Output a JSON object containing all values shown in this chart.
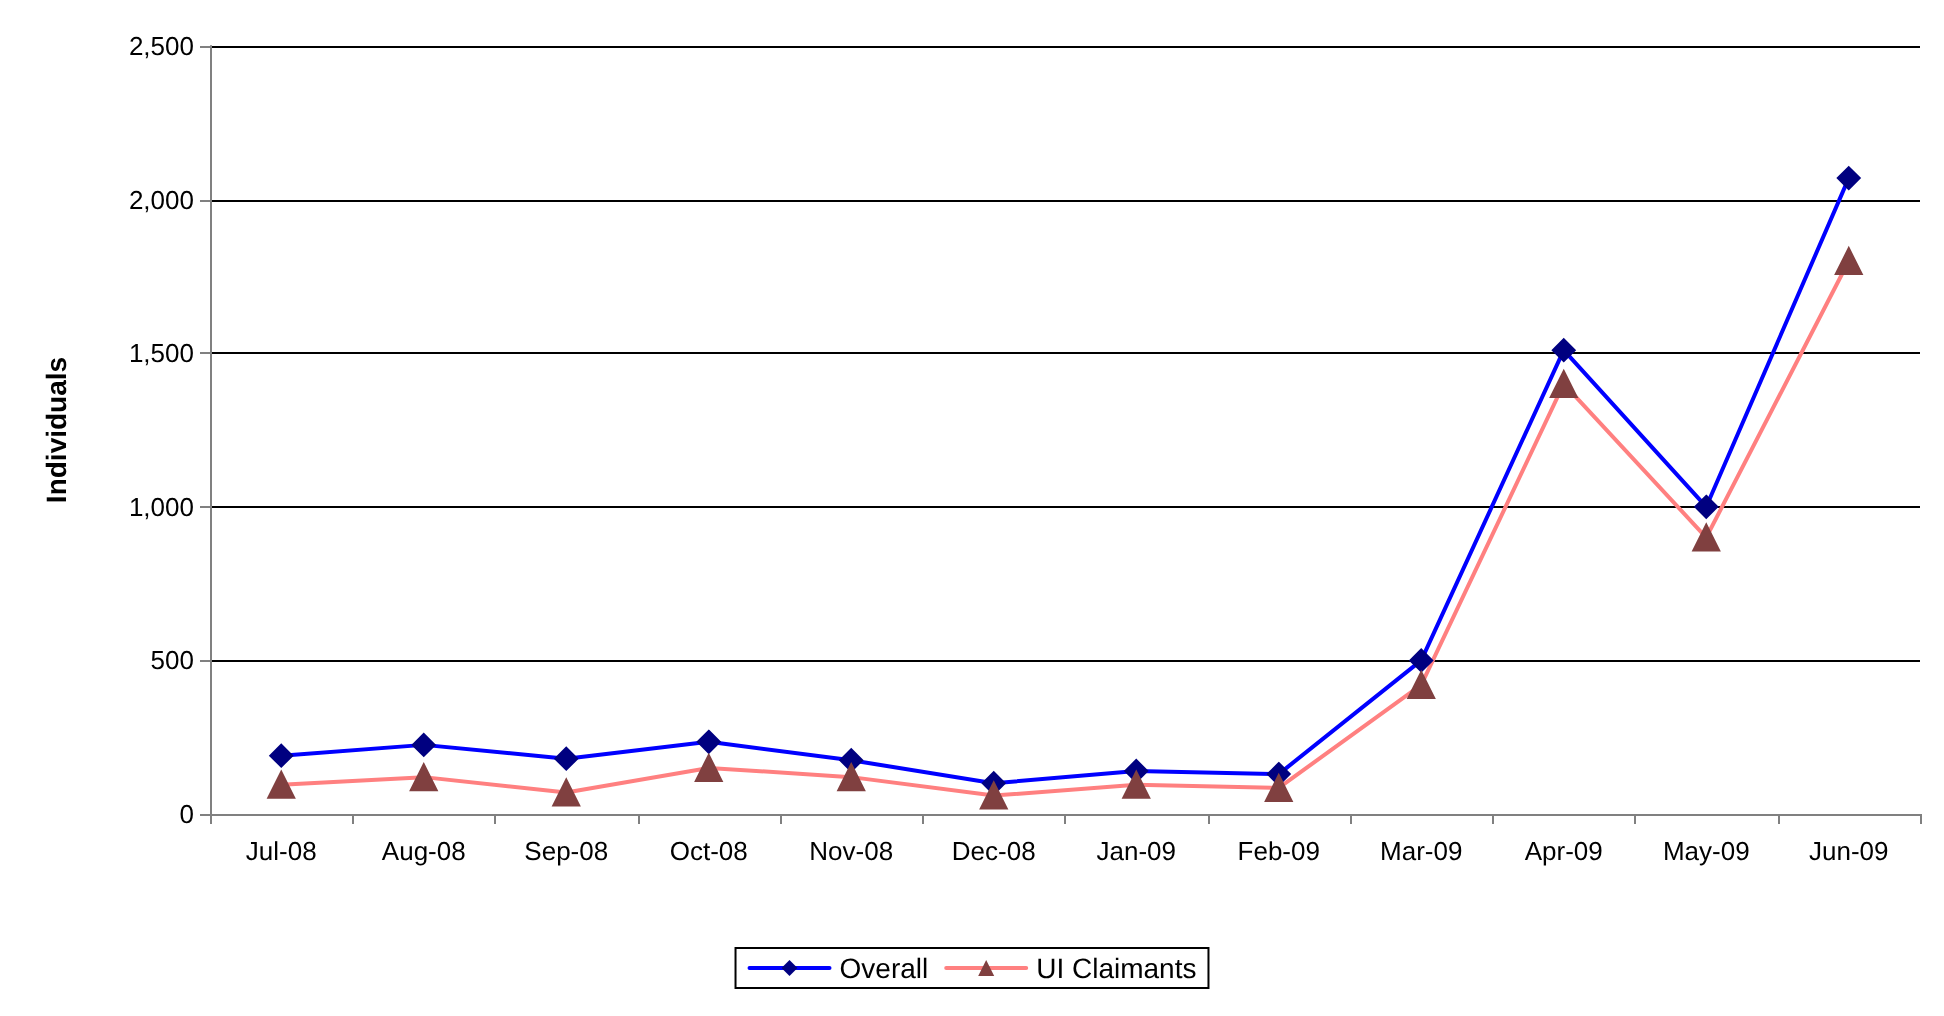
{
  "chart_data": {
    "type": "line",
    "ylabel": "Individuals",
    "categories": [
      "Jul-08",
      "Aug-08",
      "Sep-08",
      "Oct-08",
      "Nov-08",
      "Dec-08",
      "Jan-09",
      "Feb-09",
      "Mar-09",
      "Apr-09",
      "May-09",
      "Jun-09"
    ],
    "series": [
      {
        "name": "Overall",
        "color": "#0000ff",
        "marker": "diamond",
        "values": [
          190,
          225,
          180,
          235,
          175,
          100,
          140,
          130,
          500,
          1510,
          1000,
          2070
        ]
      },
      {
        "name": "UI Claimants",
        "color": "#ff8080",
        "marker": "triangle",
        "values": [
          95,
          120,
          70,
          150,
          120,
          60,
          95,
          85,
          420,
          1400,
          900,
          1800
        ]
      }
    ],
    "ylim": [
      0,
      2500
    ],
    "yticks": [
      0,
      {
        "value": 500,
        "label": "500"
      },
      {
        "value": 1000,
        "label": "1,000"
      },
      {
        "value": 1500,
        "label": "1,500"
      },
      {
        "value": 2000,
        "label": "2,000"
      },
      {
        "value": 2500,
        "label": "2,500"
      }
    ],
    "grid": "y",
    "legend": "bottom",
    "line_style": "solid"
  }
}
